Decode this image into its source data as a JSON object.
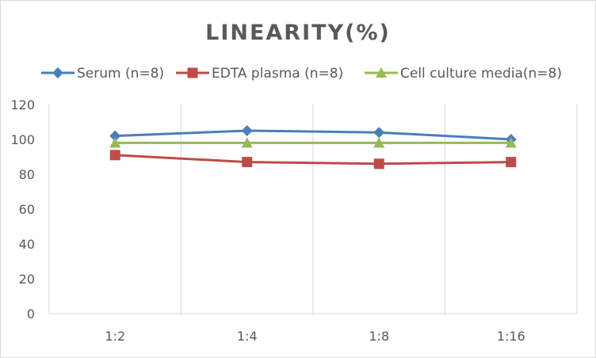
{
  "chart_data": {
    "type": "line",
    "title": "LINEARITY(%)",
    "xlabel": "",
    "ylabel": "",
    "categories": [
      "1:2",
      "1:4",
      "1:8",
      "1:16"
    ],
    "ylim": [
      0,
      120
    ],
    "yticks": [
      0,
      20,
      40,
      60,
      80,
      100,
      120
    ],
    "grid": "vertical category separators",
    "legend_position": "top",
    "series": [
      {
        "name": "Serum (n=8)",
        "values": [
          102,
          105,
          104,
          100
        ],
        "color": "#4a7ebb",
        "marker": "diamond"
      },
      {
        "name": "EDTA plasma (n=8)",
        "values": [
          91,
          87,
          86,
          87
        ],
        "color": "#be4b48",
        "marker": "square"
      },
      {
        "name": "Cell culture media(n=8)",
        "values": [
          98,
          98,
          98,
          98
        ],
        "color": "#98b954",
        "marker": "triangle"
      }
    ]
  }
}
